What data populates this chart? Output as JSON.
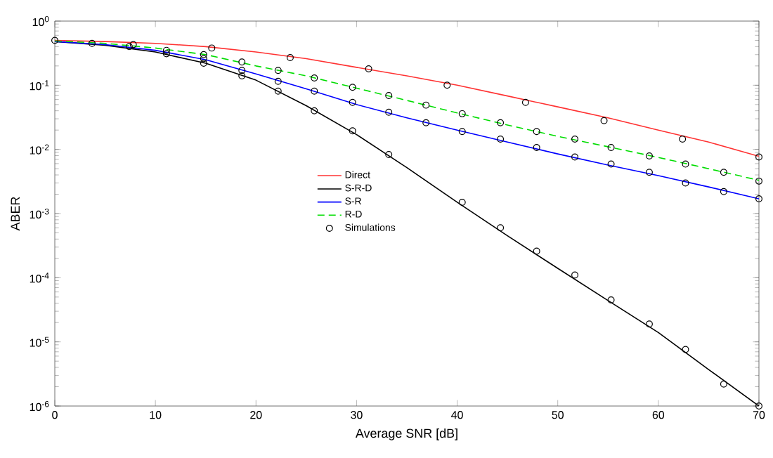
{
  "chart_data": {
    "type": "line",
    "xlabel": "Average SNR [dB]",
    "ylabel": "ABER",
    "log": "y",
    "grid": false,
    "legend": "center",
    "xlim": [
      0,
      70
    ],
    "ylim": [
      1e-06,
      1
    ],
    "xticks": [
      0,
      10,
      20,
      30,
      40,
      50,
      60,
      70
    ],
    "yticks": [
      {
        "value": 1e-06,
        "label": "10$^{-6}$"
      },
      {
        "value": 1e-05,
        "label": "10$^{-5}$"
      },
      {
        "value": 0.0001,
        "label": "10$^{-4}$"
      },
      {
        "value": 0.001,
        "label": "10$^{-3}$"
      },
      {
        "value": 0.01,
        "label": "10$^{-2}$"
      },
      {
        "value": 0.1,
        "label": "10$^{-1}$"
      },
      {
        "value": 1,
        "label": "10$^{0}$"
      }
    ],
    "x": [
      0,
      5,
      10,
      15,
      20,
      25,
      30,
      35,
      40,
      45,
      50,
      55,
      60,
      65,
      70
    ],
    "series": [
      {
        "name": "Direct",
        "color": "#ff3333",
        "line_style": "solid",
        "values": [
          0.5,
          0.48,
          0.45,
          0.4,
          0.33,
          0.26,
          0.19,
          0.14,
          0.1,
          0.068,
          0.046,
          0.031,
          0.02,
          0.013,
          0.0078
        ]
      },
      {
        "name": "S-R-D",
        "color": "#000000",
        "line_style": "solid",
        "values": [
          0.48,
          0.42,
          0.33,
          0.22,
          0.12,
          0.048,
          0.017,
          0.0052,
          0.0015,
          0.00045,
          0.00014,
          4.4e-05,
          1.4e-05,
          3.7e-06,
          1e-06
        ]
      },
      {
        "name": "S-R",
        "color": "#0000ff",
        "line_style": "solid",
        "values": [
          0.48,
          0.43,
          0.35,
          0.25,
          0.15,
          0.088,
          0.05,
          0.031,
          0.02,
          0.013,
          0.0085,
          0.0057,
          0.0039,
          0.0026,
          0.0017
        ]
      },
      {
        "name": "R-D",
        "color": "#00dd00",
        "line_style": "dashed",
        "values": [
          0.49,
          0.45,
          0.38,
          0.3,
          0.2,
          0.14,
          0.09,
          0.058,
          0.037,
          0.024,
          0.016,
          0.011,
          0.0075,
          0.005,
          0.0033
        ]
      },
      {
        "name": "Simulations",
        "type": "scatter",
        "marker": "circle",
        "color": "#000000",
        "x": [
          0,
          3.7,
          7.4,
          11.1,
          11.1,
          14.8,
          14.8,
          14.8,
          18.6,
          18.6,
          18.6,
          22.2,
          22.2,
          22.2,
          25.8,
          25.8,
          25.8,
          29.6,
          29.6,
          29.6,
          33.2,
          33.2,
          33.2,
          36.9,
          36.9,
          40.5,
          40.5,
          44.3,
          44.3,
          47.9,
          47.9,
          51.7,
          51.7,
          55.3,
          55.3,
          59.1,
          59.1,
          62.7,
          62.7,
          66.5,
          66.5,
          70,
          70,
          70,
          7.8,
          15.6,
          23.4,
          31.2,
          39,
          46.8,
          54.6,
          62.4,
          70,
          40.5,
          44.3,
          47.9,
          51.7,
          55.3,
          59.1,
          62.7,
          66.5
        ],
        "values": [
          0.5,
          0.45,
          0.4,
          0.35,
          0.31,
          0.3,
          0.26,
          0.22,
          0.23,
          0.17,
          0.14,
          0.17,
          0.115,
          0.081,
          0.13,
          0.081,
          0.04,
          0.093,
          0.054,
          0.0195,
          0.069,
          0.038,
          0.0083,
          0.049,
          0.026,
          0.036,
          0.019,
          0.026,
          0.0145,
          0.019,
          0.0107,
          0.0145,
          0.0076,
          0.0107,
          0.0059,
          0.0079,
          0.0044,
          0.0059,
          0.003,
          0.0044,
          0.0022,
          0.0032,
          0.0017,
          1e-06,
          0.43,
          0.38,
          0.27,
          0.18,
          0.1,
          0.054,
          0.028,
          0.0145,
          0.0076,
          0.0015,
          0.0006,
          0.00026,
          0.00011,
          4.5e-05,
          1.9e-05,
          7.6e-06,
          2.2e-06
        ]
      }
    ]
  }
}
